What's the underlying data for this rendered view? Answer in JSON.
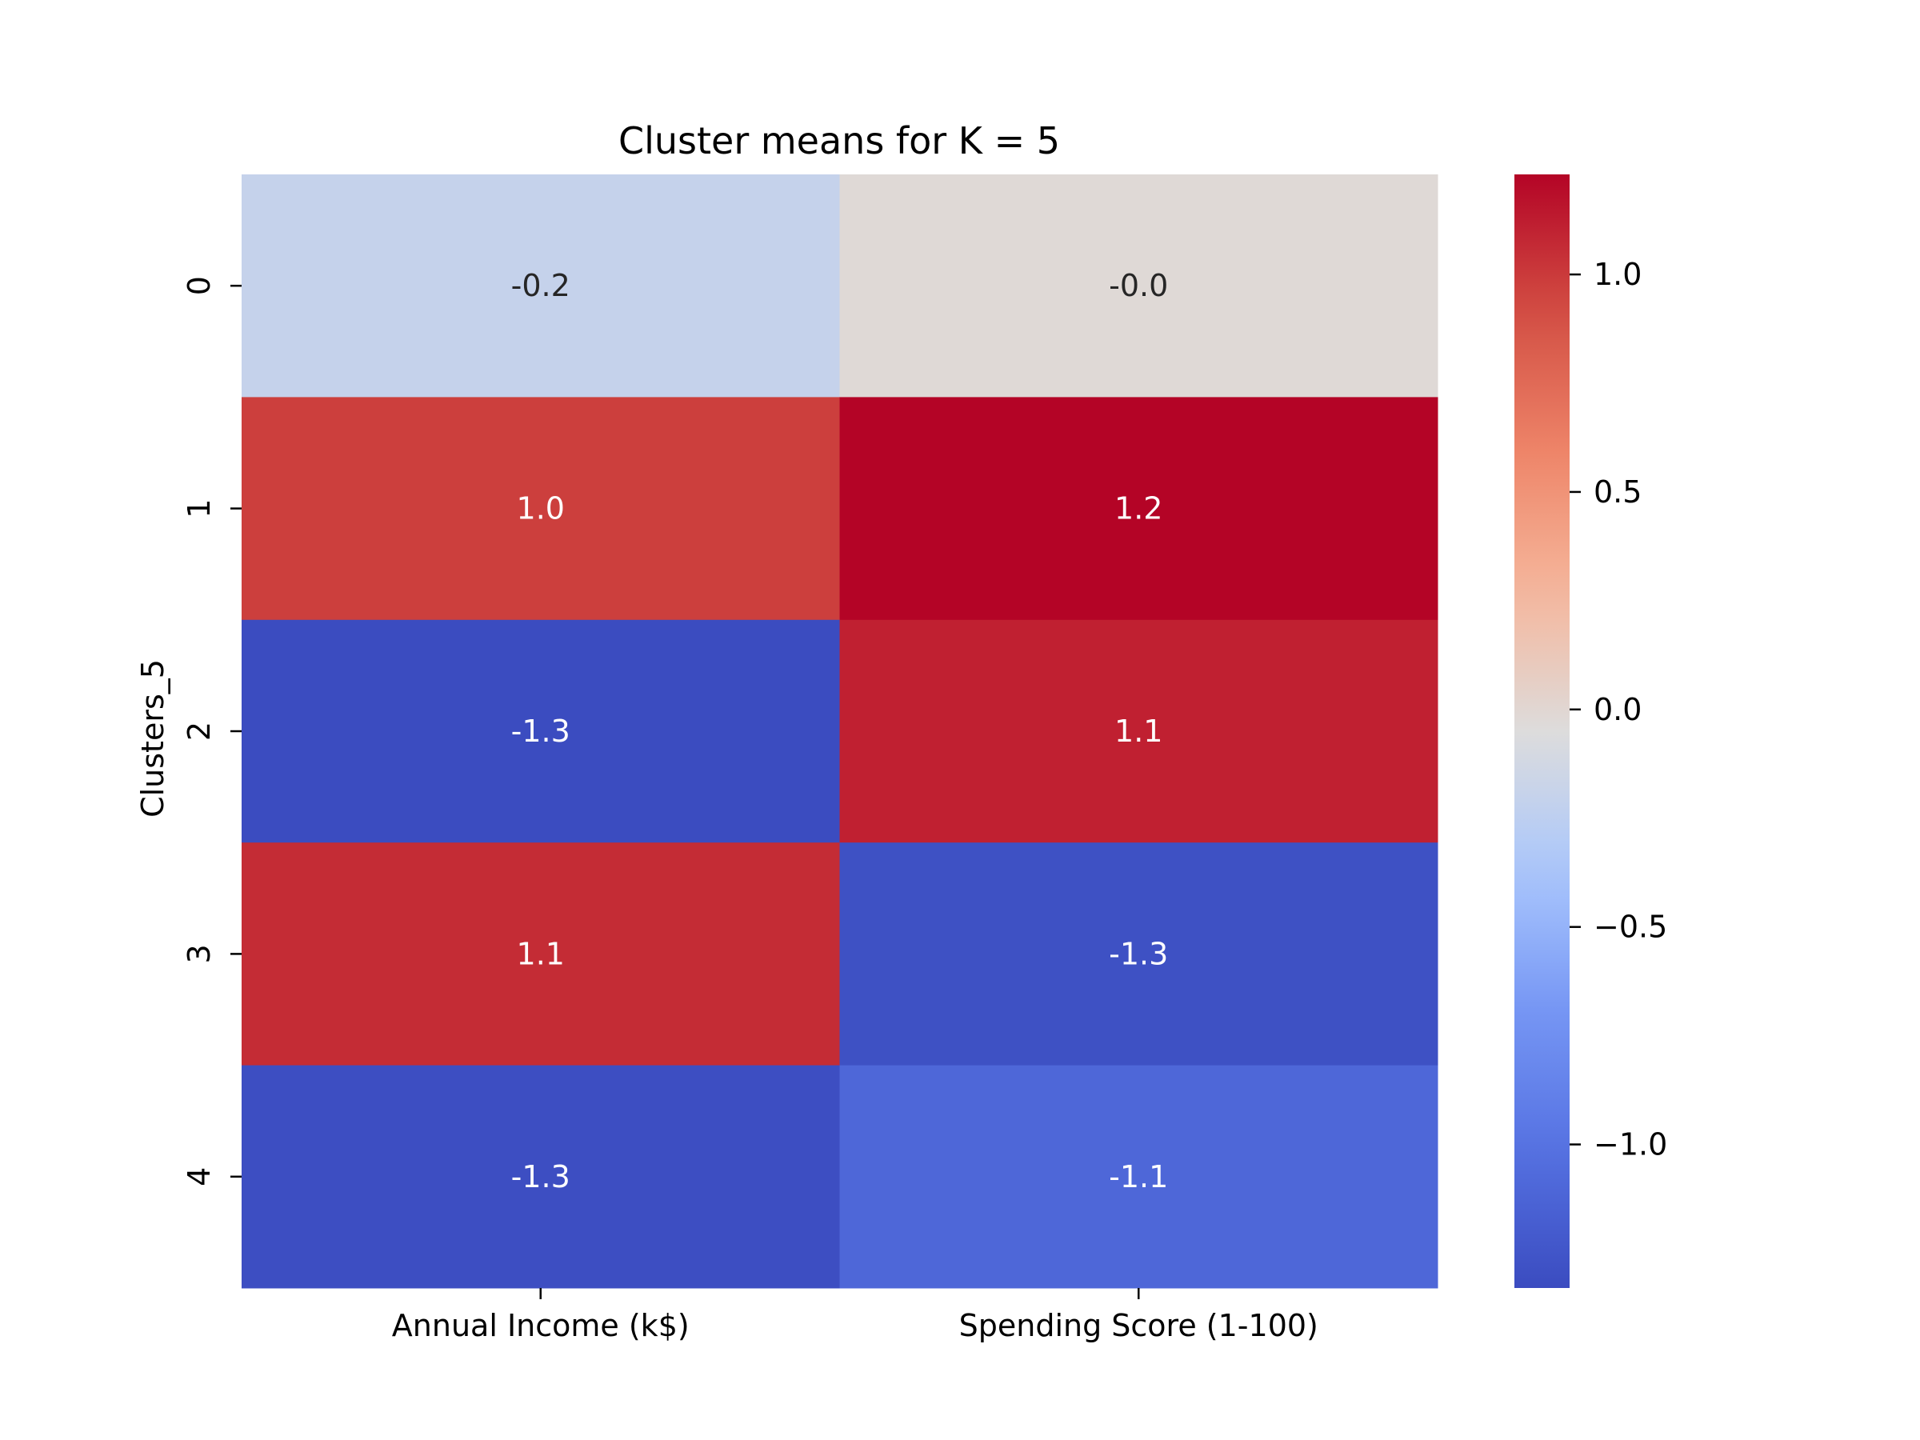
{
  "chart_data": {
    "type": "heatmap",
    "title": "Cluster means for K = 5",
    "xlabel": "",
    "ylabel": "Clusters_5",
    "columns": [
      "Annual Income (k$)",
      "Spending Score (1-100)"
    ],
    "rows": [
      "0",
      "1",
      "2",
      "3",
      "4"
    ],
    "values": [
      [
        -0.2,
        -0.02
      ],
      [
        0.98,
        1.23
      ],
      [
        -1.33,
        1.11
      ],
      [
        1.06,
        -1.29
      ],
      [
        -1.31,
        -1.1
      ]
    ],
    "cell_labels": [
      [
        "-0.2",
        "-0.0"
      ],
      [
        "1.0",
        "1.2"
      ],
      [
        "-1.3",
        "1.1"
      ],
      [
        "1.1",
        "-1.3"
      ],
      [
        "-1.3",
        "-1.1"
      ]
    ],
    "colormap": "coolwarm",
    "colorbar": {
      "range": [
        -1.33,
        1.23
      ],
      "ticks": [
        1.0,
        0.5,
        0.0,
        -0.5,
        -1.0
      ],
      "tick_labels": [
        "1.0",
        "0.5",
        "0.0",
        "−0.5",
        "−1.0"
      ]
    },
    "grid": false,
    "legend": "colorbar-right"
  }
}
